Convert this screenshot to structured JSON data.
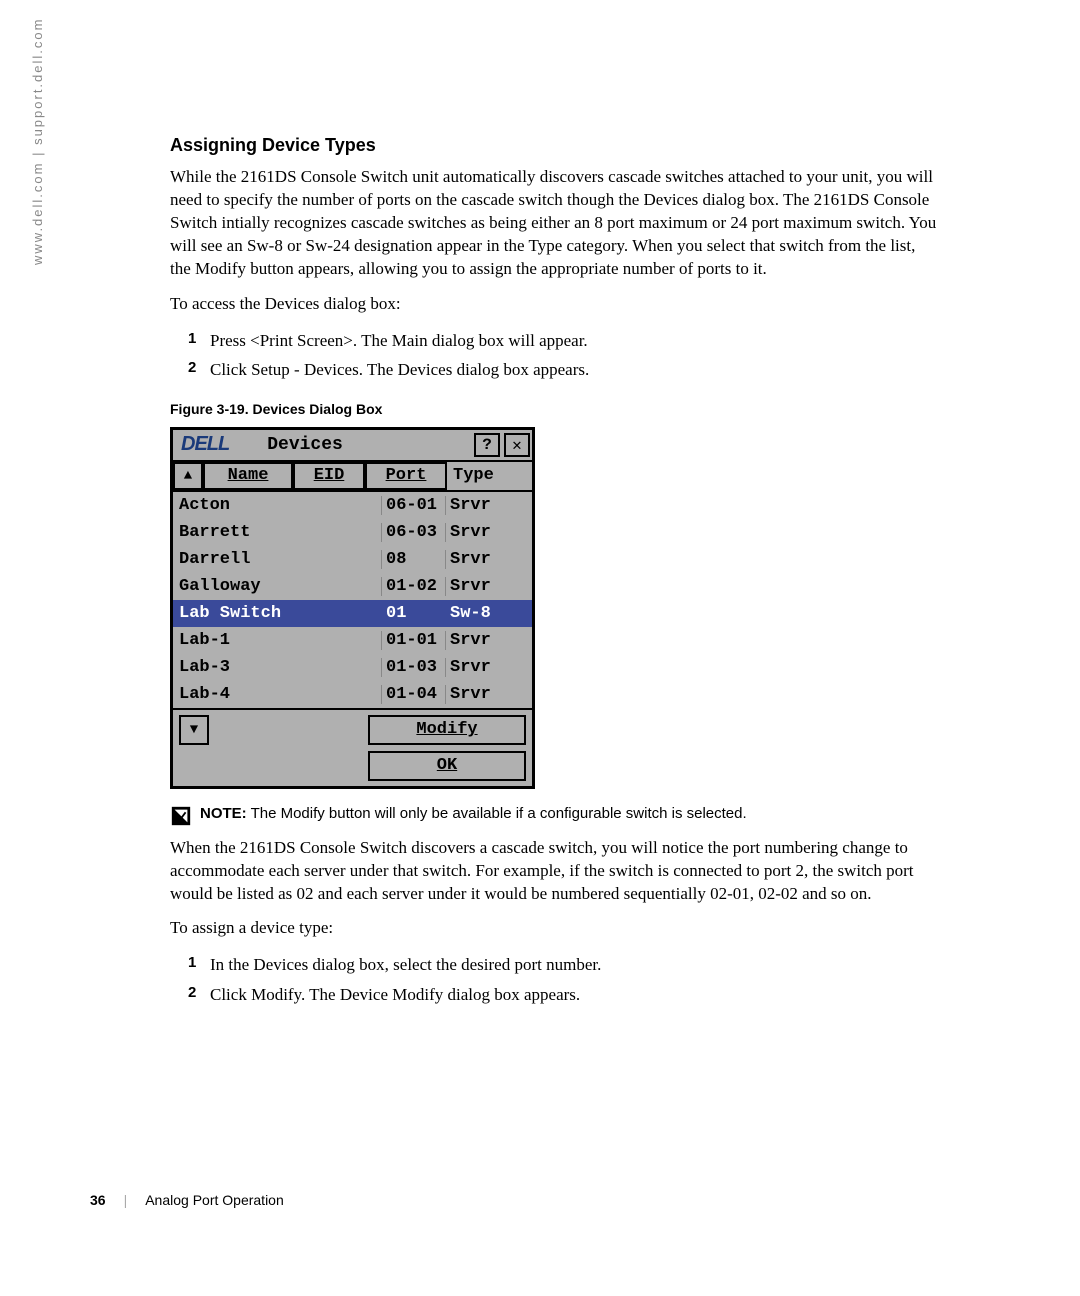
{
  "side_url": "www.dell.com | support.dell.com",
  "heading": "Assigning Device Types",
  "para1": "While the 2161DS Console Switch unit automatically discovers cascade switches attached to your unit, you will need to specify the number of ports on the cascade switch though the Devices dialog box. The 2161DS Console Switch intially recognizes cascade switches as being either an 8 port maximum or 24 port maximum switch. You will see an Sw-8 or Sw-24 designation appear in the Type category. When you select that switch from the list, the Modify button appears, allowing you to assign the appropriate number of ports to it.",
  "para_access": "To access the Devices dialog box:",
  "step1": "Press <Print Screen>. The Main dialog box will appear.",
  "step2": "Click Setup - Devices. The Devices dialog box appears.",
  "figure_caption": "Figure 3-19.    Devices Dialog Box",
  "dialog": {
    "logo_text": "DELL",
    "title": "Devices",
    "help_symbol": "?",
    "close_symbol": "✕",
    "scroll_up": "▲",
    "scroll_down": "▼",
    "col_name": "Name",
    "col_eid": "EID",
    "col_port": "Port",
    "col_type": "Type",
    "rows": [
      {
        "name": "Acton",
        "port": "06-01",
        "type": "Srvr",
        "selected": false
      },
      {
        "name": "Barrett",
        "port": "06-03",
        "type": "Srvr",
        "selected": false
      },
      {
        "name": "Darrell",
        "port": "08",
        "type": "Srvr",
        "selected": false
      },
      {
        "name": "Galloway",
        "port": "01-02",
        "type": "Srvr",
        "selected": false
      },
      {
        "name": "Lab Switch",
        "port": "01",
        "type": "Sw-8",
        "selected": true
      },
      {
        "name": "Lab-1",
        "port": "01-01",
        "type": "Srvr",
        "selected": false
      },
      {
        "name": "Lab-3",
        "port": "01-03",
        "type": "Srvr",
        "selected": false
      },
      {
        "name": "Lab-4",
        "port": "01-04",
        "type": "Srvr",
        "selected": false
      }
    ],
    "modify_btn": "Modify",
    "ok_btn": "OK"
  },
  "note_label": "NOTE:",
  "note_text": " The Modify button will only be available if a configurable switch is selected.",
  "para2": "When the 2161DS Console Switch discovers a cascade switch, you will notice the port numbering change to accommodate each server under that switch. For example, if the switch is connected to port 2, the switch port would be listed as 02 and each server under it would be numbered sequentially 02-01, 02-02 and so on.",
  "para_assign": "To assign a device type:",
  "assign1": "In the Devices dialog box, select the desired port number.",
  "assign2": "Click Modify. The Device Modify dialog box appears.",
  "page_number": "36",
  "page_section": "Analog Port Operation"
}
